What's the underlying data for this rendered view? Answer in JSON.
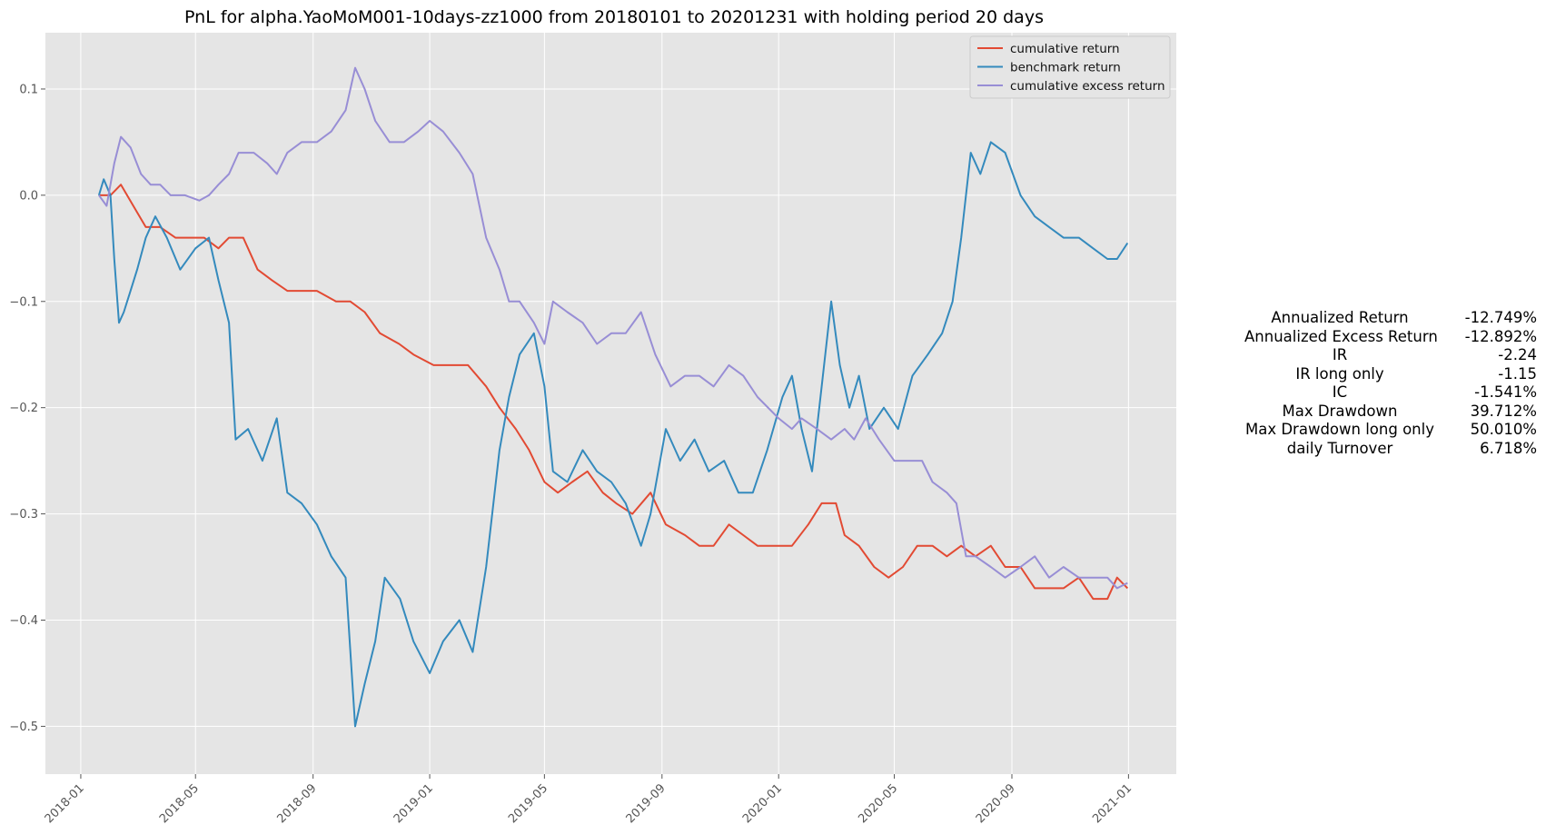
{
  "chart_data": {
    "type": "line",
    "title": "PnL for alpha.YaoMoM001-10days-zz1000 from 20180101 to 20201231 with holding period 20 days",
    "xlabel": "",
    "ylabel": "",
    "xlim": [
      "2017-11-25",
      "2021-02-20"
    ],
    "ylim": [
      -0.545,
      0.153
    ],
    "grid": true,
    "legend_position": "top-right",
    "x_ticks": [
      "2018-01",
      "2018-05",
      "2018-09",
      "2019-01",
      "2019-05",
      "2019-09",
      "2020-01",
      "2020-05",
      "2020-09",
      "2021-01"
    ],
    "y_ticks": [
      0.1,
      0.0,
      -0.1,
      -0.2,
      -0.3,
      -0.4,
      -0.5
    ],
    "y_tick_labels": [
      "0.1",
      "0.0",
      "−0.1",
      "−0.2",
      "−0.3",
      "−0.4",
      "−0.5"
    ],
    "series": [
      {
        "name": "cumulative return",
        "color": "#e24a33",
        "points": [
          [
            "2018-01-20",
            0.0
          ],
          [
            "2018-02-01",
            0.0
          ],
          [
            "2018-02-12",
            0.01
          ],
          [
            "2018-02-25",
            -0.01
          ],
          [
            "2018-03-10",
            -0.03
          ],
          [
            "2018-03-25",
            -0.03
          ],
          [
            "2018-04-10",
            -0.04
          ],
          [
            "2018-04-25",
            -0.04
          ],
          [
            "2018-05-10",
            -0.04
          ],
          [
            "2018-05-25",
            -0.05
          ],
          [
            "2018-06-05",
            -0.04
          ],
          [
            "2018-06-20",
            -0.04
          ],
          [
            "2018-07-05",
            -0.07
          ],
          [
            "2018-07-20",
            -0.08
          ],
          [
            "2018-08-05",
            -0.09
          ],
          [
            "2018-08-20",
            -0.09
          ],
          [
            "2018-09-05",
            -0.09
          ],
          [
            "2018-09-25",
            -0.1
          ],
          [
            "2018-10-10",
            -0.1
          ],
          [
            "2018-10-25",
            -0.11
          ],
          [
            "2018-11-10",
            -0.13
          ],
          [
            "2018-11-30",
            -0.14
          ],
          [
            "2018-12-15",
            -0.15
          ],
          [
            "2019-01-05",
            -0.16
          ],
          [
            "2019-01-25",
            -0.16
          ],
          [
            "2019-02-10",
            -0.16
          ],
          [
            "2019-03-01",
            -0.18
          ],
          [
            "2019-03-15",
            -0.2
          ],
          [
            "2019-04-01",
            -0.22
          ],
          [
            "2019-04-15",
            -0.24
          ],
          [
            "2019-05-01",
            -0.27
          ],
          [
            "2019-05-15",
            -0.28
          ],
          [
            "2019-05-30",
            -0.27
          ],
          [
            "2019-06-15",
            -0.26
          ],
          [
            "2019-07-01",
            -0.28
          ],
          [
            "2019-07-15",
            -0.29
          ],
          [
            "2019-08-01",
            -0.3
          ],
          [
            "2019-08-20",
            -0.28
          ],
          [
            "2019-09-05",
            -0.31
          ],
          [
            "2019-09-25",
            -0.32
          ],
          [
            "2019-10-10",
            -0.33
          ],
          [
            "2019-10-25",
            -0.33
          ],
          [
            "2019-11-10",
            -0.31
          ],
          [
            "2019-11-25",
            -0.32
          ],
          [
            "2019-12-10",
            -0.33
          ],
          [
            "2020-01-01",
            -0.33
          ],
          [
            "2020-01-15",
            -0.33
          ],
          [
            "2020-02-01",
            -0.31
          ],
          [
            "2020-02-15",
            -0.29
          ],
          [
            "2020-03-01",
            -0.29
          ],
          [
            "2020-03-10",
            -0.32
          ],
          [
            "2020-03-25",
            -0.33
          ],
          [
            "2020-04-10",
            -0.35
          ],
          [
            "2020-04-25",
            -0.36
          ],
          [
            "2020-05-10",
            -0.35
          ],
          [
            "2020-05-25",
            -0.33
          ],
          [
            "2020-06-10",
            -0.33
          ],
          [
            "2020-06-25",
            -0.34
          ],
          [
            "2020-07-10",
            -0.33
          ],
          [
            "2020-07-25",
            -0.34
          ],
          [
            "2020-08-10",
            -0.33
          ],
          [
            "2020-08-25",
            -0.35
          ],
          [
            "2020-09-10",
            -0.35
          ],
          [
            "2020-09-25",
            -0.37
          ],
          [
            "2020-10-10",
            -0.37
          ],
          [
            "2020-10-25",
            -0.37
          ],
          [
            "2020-11-10",
            -0.36
          ],
          [
            "2020-11-25",
            -0.38
          ],
          [
            "2020-12-10",
            -0.38
          ],
          [
            "2020-12-20",
            -0.36
          ],
          [
            "2020-12-31",
            -0.37
          ]
        ]
      },
      {
        "name": "benchmark return",
        "color": "#348abd",
        "points": [
          [
            "2018-01-20",
            0.0
          ],
          [
            "2018-01-25",
            0.015
          ],
          [
            "2018-02-01",
            0.0
          ],
          [
            "2018-02-05",
            -0.06
          ],
          [
            "2018-02-10",
            -0.12
          ],
          [
            "2018-02-15",
            -0.11
          ],
          [
            "2018-02-22",
            -0.09
          ],
          [
            "2018-03-01",
            -0.07
          ],
          [
            "2018-03-10",
            -0.04
          ],
          [
            "2018-03-20",
            -0.02
          ],
          [
            "2018-04-01",
            -0.04
          ],
          [
            "2018-04-15",
            -0.07
          ],
          [
            "2018-05-01",
            -0.05
          ],
          [
            "2018-05-15",
            -0.04
          ],
          [
            "2018-05-25",
            -0.08
          ],
          [
            "2018-06-05",
            -0.12
          ],
          [
            "2018-06-12",
            -0.23
          ],
          [
            "2018-06-25",
            -0.22
          ],
          [
            "2018-07-10",
            -0.25
          ],
          [
            "2018-07-25",
            -0.21
          ],
          [
            "2018-08-05",
            -0.28
          ],
          [
            "2018-08-20",
            -0.29
          ],
          [
            "2018-09-05",
            -0.31
          ],
          [
            "2018-09-20",
            -0.34
          ],
          [
            "2018-10-05",
            -0.36
          ],
          [
            "2018-10-15",
            -0.5
          ],
          [
            "2018-10-25",
            -0.46
          ],
          [
            "2018-11-05",
            -0.42
          ],
          [
            "2018-11-15",
            -0.36
          ],
          [
            "2018-12-01",
            -0.38
          ],
          [
            "2018-12-15",
            -0.42
          ],
          [
            "2019-01-01",
            -0.45
          ],
          [
            "2019-01-15",
            -0.42
          ],
          [
            "2019-02-01",
            -0.4
          ],
          [
            "2019-02-15",
            -0.43
          ],
          [
            "2019-03-01",
            -0.35
          ],
          [
            "2019-03-15",
            -0.24
          ],
          [
            "2019-03-25",
            -0.19
          ],
          [
            "2019-04-05",
            -0.15
          ],
          [
            "2019-04-20",
            -0.13
          ],
          [
            "2019-05-01",
            -0.18
          ],
          [
            "2019-05-10",
            -0.26
          ],
          [
            "2019-05-25",
            -0.27
          ],
          [
            "2019-06-10",
            -0.24
          ],
          [
            "2019-06-25",
            -0.26
          ],
          [
            "2019-07-10",
            -0.27
          ],
          [
            "2019-07-25",
            -0.29
          ],
          [
            "2019-08-10",
            -0.33
          ],
          [
            "2019-08-20",
            -0.3
          ],
          [
            "2019-09-05",
            -0.22
          ],
          [
            "2019-09-20",
            -0.25
          ],
          [
            "2019-10-05",
            -0.23
          ],
          [
            "2019-10-20",
            -0.26
          ],
          [
            "2019-11-05",
            -0.25
          ],
          [
            "2019-11-20",
            -0.28
          ],
          [
            "2019-12-05",
            -0.28
          ],
          [
            "2019-12-20",
            -0.24
          ],
          [
            "2020-01-05",
            -0.19
          ],
          [
            "2020-01-15",
            -0.17
          ],
          [
            "2020-01-25",
            -0.22
          ],
          [
            "2020-02-05",
            -0.26
          ],
          [
            "2020-02-15",
            -0.18
          ],
          [
            "2020-02-25",
            -0.1
          ],
          [
            "2020-03-05",
            -0.16
          ],
          [
            "2020-03-15",
            -0.2
          ],
          [
            "2020-03-25",
            -0.17
          ],
          [
            "2020-04-05",
            -0.22
          ],
          [
            "2020-04-20",
            -0.2
          ],
          [
            "2020-05-05",
            -0.22
          ],
          [
            "2020-05-20",
            -0.17
          ],
          [
            "2020-06-05",
            -0.15
          ],
          [
            "2020-06-20",
            -0.13
          ],
          [
            "2020-07-01",
            -0.1
          ],
          [
            "2020-07-10",
            -0.04
          ],
          [
            "2020-07-20",
            0.04
          ],
          [
            "2020-07-30",
            0.02
          ],
          [
            "2020-08-10",
            0.05
          ],
          [
            "2020-08-25",
            0.04
          ],
          [
            "2020-09-10",
            0.0
          ],
          [
            "2020-09-25",
            -0.02
          ],
          [
            "2020-10-10",
            -0.03
          ],
          [
            "2020-10-25",
            -0.04
          ],
          [
            "2020-11-10",
            -0.04
          ],
          [
            "2020-11-25",
            -0.05
          ],
          [
            "2020-12-10",
            -0.06
          ],
          [
            "2020-12-20",
            -0.06
          ],
          [
            "2020-12-31",
            -0.045
          ]
        ]
      },
      {
        "name": "cumulative excess return",
        "color": "#988ed5",
        "points": [
          [
            "2018-01-20",
            0.0
          ],
          [
            "2018-01-28",
            -0.01
          ],
          [
            "2018-02-05",
            0.03
          ],
          [
            "2018-02-12",
            0.055
          ],
          [
            "2018-02-22",
            0.045
          ],
          [
            "2018-03-05",
            0.02
          ],
          [
            "2018-03-15",
            0.01
          ],
          [
            "2018-03-25",
            0.01
          ],
          [
            "2018-04-05",
            0.0
          ],
          [
            "2018-04-20",
            0.0
          ],
          [
            "2018-05-05",
            -0.005
          ],
          [
            "2018-05-15",
            0.0
          ],
          [
            "2018-05-25",
            0.01
          ],
          [
            "2018-06-05",
            0.02
          ],
          [
            "2018-06-15",
            0.04
          ],
          [
            "2018-07-01",
            0.04
          ],
          [
            "2018-07-15",
            0.03
          ],
          [
            "2018-07-25",
            0.02
          ],
          [
            "2018-08-05",
            0.04
          ],
          [
            "2018-08-20",
            0.05
          ],
          [
            "2018-09-05",
            0.05
          ],
          [
            "2018-09-20",
            0.06
          ],
          [
            "2018-10-05",
            0.08
          ],
          [
            "2018-10-15",
            0.12
          ],
          [
            "2018-10-25",
            0.1
          ],
          [
            "2018-11-05",
            0.07
          ],
          [
            "2018-11-20",
            0.05
          ],
          [
            "2018-12-05",
            0.05
          ],
          [
            "2018-12-20",
            0.06
          ],
          [
            "2019-01-01",
            0.07
          ],
          [
            "2019-01-15",
            0.06
          ],
          [
            "2019-02-01",
            0.04
          ],
          [
            "2019-02-15",
            0.02
          ],
          [
            "2019-03-01",
            -0.04
          ],
          [
            "2019-03-15",
            -0.07
          ],
          [
            "2019-03-25",
            -0.1
          ],
          [
            "2019-04-05",
            -0.1
          ],
          [
            "2019-04-20",
            -0.12
          ],
          [
            "2019-05-01",
            -0.14
          ],
          [
            "2019-05-10",
            -0.1
          ],
          [
            "2019-05-25",
            -0.11
          ],
          [
            "2019-06-10",
            -0.12
          ],
          [
            "2019-06-25",
            -0.14
          ],
          [
            "2019-07-10",
            -0.13
          ],
          [
            "2019-07-25",
            -0.13
          ],
          [
            "2019-08-10",
            -0.11
          ],
          [
            "2019-08-25",
            -0.15
          ],
          [
            "2019-09-10",
            -0.18
          ],
          [
            "2019-09-25",
            -0.17
          ],
          [
            "2019-10-10",
            -0.17
          ],
          [
            "2019-10-25",
            -0.18
          ],
          [
            "2019-11-10",
            -0.16
          ],
          [
            "2019-11-25",
            -0.17
          ],
          [
            "2019-12-10",
            -0.19
          ],
          [
            "2020-01-01",
            -0.21
          ],
          [
            "2020-01-15",
            -0.22
          ],
          [
            "2020-01-25",
            -0.21
          ],
          [
            "2020-02-10",
            -0.22
          ],
          [
            "2020-02-25",
            -0.23
          ],
          [
            "2020-03-10",
            -0.22
          ],
          [
            "2020-03-20",
            -0.23
          ],
          [
            "2020-04-01",
            -0.21
          ],
          [
            "2020-04-15",
            -0.23
          ],
          [
            "2020-05-01",
            -0.25
          ],
          [
            "2020-05-15",
            -0.25
          ],
          [
            "2020-05-30",
            -0.25
          ],
          [
            "2020-06-10",
            -0.27
          ],
          [
            "2020-06-25",
            -0.28
          ],
          [
            "2020-07-05",
            -0.29
          ],
          [
            "2020-07-15",
            -0.34
          ],
          [
            "2020-07-25",
            -0.34
          ],
          [
            "2020-08-10",
            -0.35
          ],
          [
            "2020-08-25",
            -0.36
          ],
          [
            "2020-09-10",
            -0.35
          ],
          [
            "2020-09-25",
            -0.34
          ],
          [
            "2020-10-10",
            -0.36
          ],
          [
            "2020-10-25",
            -0.35
          ],
          [
            "2020-11-10",
            -0.36
          ],
          [
            "2020-11-25",
            -0.36
          ],
          [
            "2020-12-10",
            -0.36
          ],
          [
            "2020-12-20",
            -0.37
          ],
          [
            "2020-12-31",
            -0.365
          ]
        ]
      }
    ]
  },
  "stats": [
    {
      "label": "Annualized Return",
      "value": "-12.749%"
    },
    {
      "label": "Annualized Excess Return",
      "value": "-12.892%"
    },
    {
      "label": "IR",
      "value": "-2.24"
    },
    {
      "label": "IR long only",
      "value": "-1.15"
    },
    {
      "label": "IC",
      "value": "-1.541%"
    },
    {
      "label": "Max Drawdown",
      "value": "39.712%"
    },
    {
      "label": "Max Drawdown long only",
      "value": "50.010%"
    },
    {
      "label": "daily Turnover",
      "value": "6.718%"
    }
  ]
}
